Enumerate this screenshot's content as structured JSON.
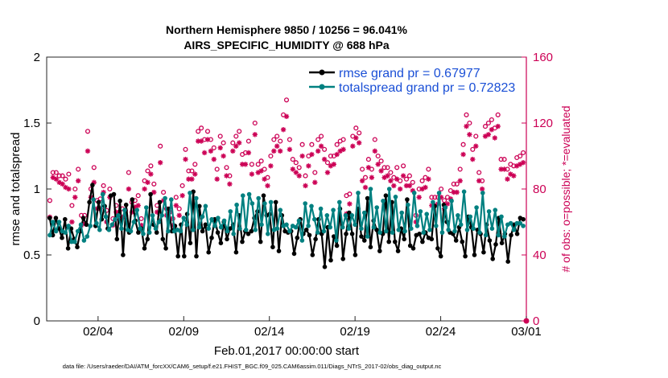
{
  "chart_data": {
    "type": "line",
    "title_line1": "Northern Hemisphere 9850 / 10256 = 96.041%",
    "title_line2": "AIRS_SPECIFIC_HUMIDITY @ 688 hPa",
    "ylabel_left": "rmse and totalspread",
    "ylabel_right": "# of obs: o=possible; *=evaluated",
    "xlabel": "Feb.01,2017 00:00:00 start",
    "ylim_left": [
      0,
      2
    ],
    "ylim_right": [
      0,
      160
    ],
    "xlim": [
      0,
      28
    ],
    "y_ticks_left": [
      "0",
      "0.5",
      "1",
      "1.5",
      "2"
    ],
    "y_ticks_right": [
      "0",
      "40",
      "80",
      "120",
      "160"
    ],
    "x_ticks": [
      {
        "x": 3,
        "label": "02/04"
      },
      {
        "x": 8,
        "label": "02/09"
      },
      {
        "x": 13,
        "label": "02/14"
      },
      {
        "x": 18,
        "label": "02/19"
      },
      {
        "x": 23,
        "label": "02/24"
      },
      {
        "x": 28,
        "label": "03/01"
      }
    ],
    "footer_text": "data file: /Users/raeder/DAI/ATM_forcXX/CAM6_setup/f.e21.FHIST_BGC.f09_025.CAM6assim.011/Diags_NTrS_2017-02/obs_diag_output.nc",
    "series": [
      {
        "name": "rmse grand pr = 0.67977",
        "color": "#000000",
        "values": [
          0.78,
          0.65,
          0.78,
          0.7,
          0.63,
          0.77,
          0.55,
          0.7,
          0.62,
          0.56,
          0.68,
          0.78,
          0.73,
          0.9,
          1.03,
          0.72,
          0.9,
          0.77,
          0.87,
          0.7,
          0.95,
          0.96,
          0.62,
          0.91,
          0.5,
          0.88,
          0.67,
          0.92,
          0.76,
          0.67,
          0.7,
          0.55,
          0.62,
          0.96,
          0.73,
          0.67,
          0.9,
          0.62,
          0.55,
          0.85,
          0.68,
          0.72,
          0.49,
          0.73,
          0.49,
          0.81,
          0.59,
          0.98,
          0.49,
          0.87,
          0.68,
          0.73,
          0.52,
          0.63,
          0.77,
          0.67,
          0.59,
          0.75,
          0.62,
          0.7,
          0.73,
          0.52,
          0.8,
          0.6,
          0.68,
          0.66,
          0.68,
          0.78,
          0.83,
          0.6,
          0.95,
          0.8,
          0.81,
          0.56,
          0.9,
          0.53,
          0.8,
          0.68,
          0.67,
          0.68,
          0.51,
          0.63,
          0.77,
          0.66,
          0.69,
          0.65,
          0.5,
          0.62,
          0.77,
          0.66,
          0.41,
          0.71,
          0.46,
          0.64,
          0.57,
          0.85,
          0.47,
          0.66,
          0.82,
          0.66,
          0.5,
          0.85,
          0.64,
          0.61,
          0.93,
          0.56,
          0.76,
          0.69,
          0.53,
          0.66,
          0.95,
          0.6,
          0.9,
          0.6,
          0.53,
          0.7,
          0.62,
          0.92,
          0.57,
          0.55,
          0.65,
          0.66,
          0.6,
          0.67,
          0.63,
          0.62,
          0.87,
          0.55,
          0.49,
          0.88,
          0.75,
          0.67,
          0.66,
          0.61,
          0.71,
          0.6,
          0.49,
          0.79,
          0.71,
          0.5,
          0.69,
          0.66,
          0.52,
          0.73,
          0.61,
          0.47,
          0.58,
          0.78,
          0.59,
          0.66,
          0.45,
          0.65,
          0.73,
          0.66,
          0.78,
          0.77
        ]
      },
      {
        "name": "totalspread grand pr = 0.72823",
        "color": "#008080",
        "values": [
          0.65,
          0.75,
          0.68,
          0.75,
          0.68,
          0.67,
          0.72,
          0.6,
          0.6,
          0.68,
          0.73,
          0.61,
          0.64,
          0.72,
          0.92,
          0.74,
          0.69,
          0.96,
          0.79,
          0.69,
          0.73,
          0.77,
          0.8,
          0.7,
          0.84,
          0.69,
          0.68,
          0.75,
          0.84,
          0.7,
          0.66,
          0.86,
          0.67,
          0.8,
          0.7,
          0.75,
          0.8,
          0.93,
          0.68,
          0.92,
          0.68,
          0.69,
          0.68,
          0.78,
          0.73,
          0.97,
          0.69,
          0.93,
          0.71,
          0.79,
          0.87,
          0.7,
          0.77,
          0.72,
          0.78,
          0.71,
          0.76,
          0.68,
          0.83,
          0.66,
          0.88,
          0.7,
          0.95,
          0.69,
          0.96,
          0.89,
          0.69,
          0.93,
          0.73,
          0.89,
          0.66,
          0.9,
          0.69,
          0.7,
          0.84,
          0.72,
          0.73,
          0.68,
          0.72,
          0.71,
          0.76,
          0.61,
          0.89,
          0.72,
          0.87,
          0.77,
          0.67,
          0.85,
          0.68,
          0.8,
          0.71,
          0.84,
          0.61,
          0.9,
          0.71,
          0.8,
          0.7,
          0.8,
          0.73,
          0.97,
          0.7,
          0.82,
          0.64,
          1.0,
          0.71,
          0.86,
          0.67,
          0.91,
          0.68,
          1.0,
          0.67,
          0.94,
          0.69,
          0.82,
          0.68,
          0.88,
          0.7,
          0.97,
          0.72,
          0.83,
          0.67,
          0.81,
          0.69,
          0.9,
          0.72,
          0.97,
          0.67,
          0.86,
          0.69,
          0.91,
          0.68,
          0.8,
          0.73,
          0.98,
          0.69,
          0.79,
          0.7,
          0.86,
          0.67,
          0.97,
          0.65,
          0.83,
          0.7,
          0.84,
          0.65,
          0.79,
          0.64,
          0.73,
          0.74,
          0.69,
          0.74,
          0.74,
          0.72
        ]
      },
      {
        "name": "obs possible",
        "color": "#cc0055",
        "axis": "right",
        "values": [
          73,
          90,
          90,
          88,
          88,
          86,
          89,
          70,
          80,
          92,
          64,
          64,
          115,
          80,
          93,
          73,
          74,
          82,
          67,
          80,
          62,
          70,
          66,
          68,
          67,
          90,
          72,
          73,
          76,
          62,
          85,
          91,
          94,
          83,
          70,
          106,
          78,
          68,
          66,
          62,
          75,
          68,
          82,
          104,
          91,
          91,
          95,
          115,
          117,
          110,
          115,
          110,
          105,
          92,
          112,
          108,
          93,
          88,
          108,
          112,
          115,
          101,
          102,
          109,
          95,
          120,
          95,
          97,
          92,
          87,
          100,
          110,
          112,
          109,
          125,
          134,
          110,
          98,
          96,
          93,
          107,
          88,
          100,
          107,
          90,
          110,
          112,
          104,
          96,
          100,
          100,
          107,
          109,
          110,
          76,
          77,
          112,
          117,
          114,
          92,
          87,
          98,
          92,
          110,
          100,
          97,
          93,
          93,
          90,
          87,
          93,
          85,
          94,
          86,
          88,
          84,
          64,
          80,
          85,
          87,
          92,
          75,
          75,
          75,
          80,
          73,
          75,
          79,
          83,
          83,
          92,
          107,
          125,
          120,
          104,
          112,
          90,
          85,
          118,
          120,
          122,
          117,
          125,
          98,
          98,
          92,
          95,
          94,
          99,
          100,
          102
        ]
      },
      {
        "name": "obs evaluated",
        "color": "#cc0055",
        "axis": "right",
        "values": [
          63,
          87,
          86,
          84,
          83,
          81,
          80,
          60,
          75,
          85,
          58,
          59,
          103,
          75,
          84,
          68,
          68,
          78,
          60,
          75,
          58,
          66,
          61,
          63,
          64,
          80,
          66,
          69,
          70,
          58,
          80,
          84,
          89,
          78,
          66,
          96,
          73,
          64,
          62,
          58,
          70,
          64,
          76,
          98,
          86,
          86,
          89,
          109,
          109,
          102,
          110,
          103,
          98,
          86,
          105,
          100,
          88,
          83,
          103,
          106,
          108,
          95,
          95,
          102,
          89,
          113,
          90,
          91,
          86,
          82,
          94,
          103,
          106,
          103,
          116,
          124,
          104,
          92,
          90,
          88,
          100,
          82,
          94,
          101,
          84,
          103,
          106,
          98,
          90,
          94,
          95,
          101,
          103,
          104,
          65,
          71,
          106,
          111,
          108,
          85,
          81,
          93,
          87,
          103,
          95,
          91,
          87,
          88,
          85,
          82,
          86,
          80,
          88,
          82,
          82,
          79,
          60,
          75,
          80,
          81,
          86,
          70,
          70,
          71,
          75,
          68,
          71,
          74,
          78,
          78,
          85,
          101,
          118,
          113,
          98,
          106,
          85,
          80,
          112,
          113,
          116,
          111,
          118,
          92,
          92,
          86,
          89,
          88,
          94,
          95,
          96
        ]
      }
    ]
  }
}
